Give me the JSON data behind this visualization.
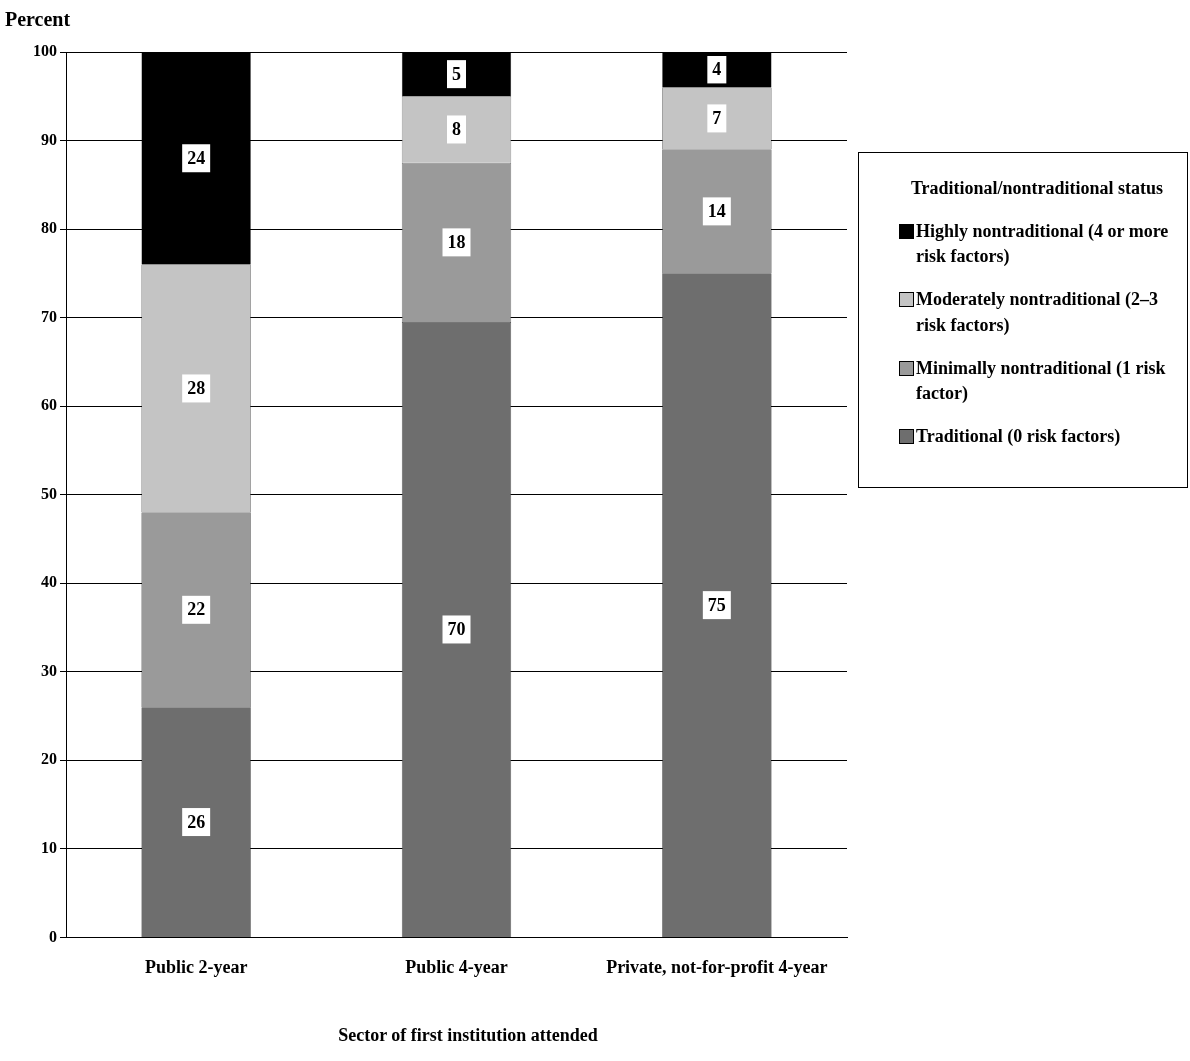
{
  "chart_data": {
    "type": "bar",
    "stacked": true,
    "ylabel": "Percent",
    "xlabel": "Sector of first institution attended",
    "legend_title": "Traditional/nontraditional status",
    "legend": "right",
    "grid": "y",
    "categories": [
      "Public 2-year",
      "Public 4-year",
      "Private, not-for-profit 4-year"
    ],
    "ylim": [
      0,
      100
    ],
    "yticks": [
      0,
      10,
      20,
      30,
      40,
      50,
      60,
      70,
      80,
      90,
      100
    ],
    "series": [
      {
        "name": "Traditional (0 risk factors)",
        "color": "#6e6e6e",
        "values": [
          26,
          69.5,
          75
        ],
        "value_labels": [
          "26",
          "70",
          "75"
        ]
      },
      {
        "name": "Minimally nontraditional (1 risk factor)",
        "color": "#9a9a9a",
        "values": [
          22,
          18,
          14
        ],
        "value_labels": [
          "22",
          "18",
          "14"
        ]
      },
      {
        "name": "Moderately nontraditional (2–3 risk factors)",
        "color": "#c4c4c4",
        "values": [
          28,
          7.5,
          7
        ],
        "value_labels": [
          "28",
          "8",
          "7"
        ]
      },
      {
        "name": "Highly nontraditional (4 or more risk factors)",
        "color": "#000000",
        "values": [
          24,
          5,
          4
        ],
        "value_labels": [
          "24",
          "5",
          "4"
        ]
      }
    ]
  }
}
